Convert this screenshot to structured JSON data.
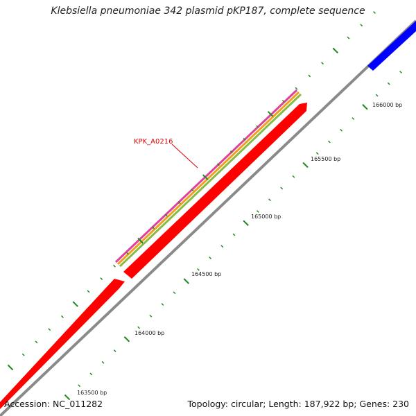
{
  "title": "Klebsiella pneumoniae 342 plasmid pKP187, complete sequence",
  "footer": {
    "accession": "Accession: NC_011282",
    "summary": "Topology: circular; Length: 187,922 bp; Genes: 230"
  },
  "gene_label": "KPK_A0216",
  "tick_labels": [
    "166000 bp",
    "165500 bp",
    "165000 bp",
    "164500 bp",
    "164000 bp",
    "163500 bp"
  ],
  "colors": {
    "forward_strand": "#0000ff",
    "reverse_strand": "#ff0000",
    "backbone": "#888888",
    "ticks": "#228822",
    "feature_magenta": "#e0409a",
    "feature_orange": "#f0a020",
    "feature_green": "#88bb44",
    "label": "#e00000"
  }
}
